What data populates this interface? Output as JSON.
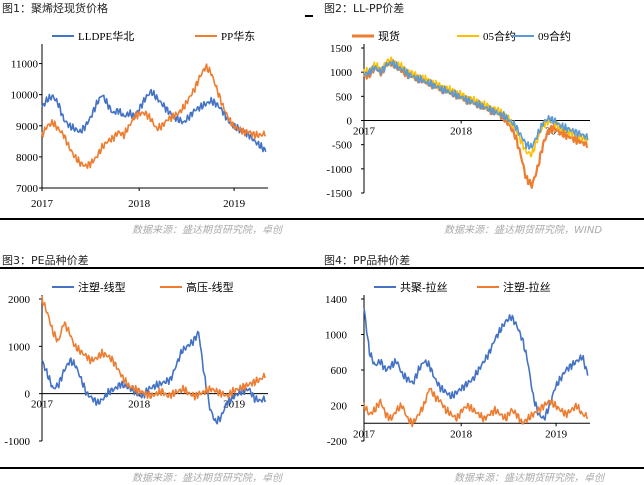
{
  "page": {
    "source_text": "数据来源：盛达期货研究院，卓创",
    "source_text_wind": "数据来源：盛达期货研究院，WIND"
  },
  "colors": {
    "blue": "#4472C4",
    "orange": "#ED7D31",
    "yellow": "#FFC000",
    "lightblue": "#5B9BD5",
    "source_gray": "#aaaaaa"
  },
  "panels": [
    {
      "title": "图1：聚烯烃现货价格"
    },
    {
      "title": "图2：LL-PP价差"
    },
    {
      "title": "图3：PE品种价差"
    },
    {
      "title": "图4：PP品种价差"
    }
  ],
  "chart_data": [
    {
      "type": "line",
      "title": "图1：聚烯烃现货价格",
      "ylim": [
        7000,
        11500
      ],
      "yticks": [
        7000,
        8000,
        9000,
        10000,
        11000
      ],
      "xticks": [
        "2017",
        "2018",
        "2019"
      ],
      "legend": "top",
      "series": [
        {
          "name": "LLDPE华北",
          "color": "#4472C4",
          "values": [
            9600,
            9850,
            9950,
            9700,
            9200,
            9000,
            8900,
            8800,
            9000,
            9300,
            9700,
            10000,
            9700,
            9400,
            9500,
            9300,
            9400,
            9300,
            9600,
            9900,
            10100,
            9900,
            9700,
            9500,
            9300,
            9200,
            9100,
            9300,
            9500,
            9600,
            9700,
            9800,
            9700,
            9500,
            9200,
            9000,
            8900,
            8800,
            8700,
            8500,
            8350,
            8200
          ]
        },
        {
          "name": "PP华东",
          "color": "#ED7D31",
          "values": [
            8700,
            9000,
            9100,
            8900,
            8700,
            8300,
            8000,
            7800,
            7700,
            7800,
            8000,
            8300,
            8500,
            8600,
            8800,
            8700,
            9000,
            9300,
            9400,
            9400,
            9200,
            8900,
            9000,
            9200,
            9300,
            9400,
            9600,
            9900,
            10200,
            10600,
            10900,
            10700,
            10200,
            9700,
            9300,
            9000,
            8900,
            8800,
            8800,
            8700,
            8700,
            8750
          ]
        }
      ]
    },
    {
      "type": "line",
      "title": "图2：LL-PP价差",
      "ylim": [
        -1500,
        1500
      ],
      "yticks": [
        -1500,
        -1000,
        -500,
        0,
        500,
        1000,
        1500
      ],
      "xticks": [
        "2017",
        "2018",
        "2019"
      ],
      "legend": "top",
      "series": [
        {
          "name": "现货",
          "color": "#ED7D31",
          "values": [
            900,
            950,
            1100,
            1000,
            1150,
            1200,
            1100,
            1000,
            950,
            900,
            850,
            800,
            750,
            700,
            650,
            600,
            550,
            500,
            450,
            400,
            350,
            300,
            250,
            200,
            150,
            50,
            -100,
            -300,
            -700,
            -1200,
            -1350,
            -1000,
            -500,
            -200,
            -150,
            -250,
            -300,
            -350,
            -400,
            -450,
            -500
          ]
        },
        {
          "name": "05合约",
          "color": "#FFC000",
          "values": [
            1000,
            1050,
            1150,
            1050,
            1200,
            1250,
            1150,
            1100,
            1000,
            950,
            900,
            850,
            800,
            750,
            700,
            650,
            600,
            550,
            500,
            450,
            400,
            350,
            300,
            250,
            200,
            150,
            0,
            -150,
            -400,
            -650,
            -700,
            -400,
            -100,
            0,
            -50,
            -150,
            -200,
            -250,
            -300,
            -350,
            -400
          ]
        },
        {
          "name": "09合约",
          "color": "#5B9BD5",
          "values": [
            950,
            1000,
            1100,
            1000,
            1150,
            1200,
            1100,
            1050,
            950,
            900,
            850,
            800,
            750,
            700,
            650,
            600,
            550,
            500,
            450,
            400,
            350,
            300,
            250,
            200,
            150,
            100,
            0,
            -100,
            -300,
            -500,
            -550,
            -300,
            -50,
            50,
            0,
            -100,
            -150,
            -200,
            -250,
            -300,
            -350
          ]
        }
      ]
    },
    {
      "type": "line",
      "title": "图3：PE品种价差",
      "ylim": [
        -1000,
        2000
      ],
      "yticks": [
        -1000,
        0,
        1000,
        2000
      ],
      "xticks": [
        "2017",
        "2018",
        "2019"
      ],
      "legend": "top",
      "series": [
        {
          "name": "注塑-线型",
          "color": "#4472C4",
          "values": [
            700,
            400,
            100,
            200,
            500,
            700,
            600,
            300,
            0,
            -100,
            -200,
            -100,
            50,
            100,
            200,
            150,
            100,
            0,
            -50,
            100,
            150,
            200,
            250,
            300,
            600,
            900,
            1000,
            1100,
            1300,
            400,
            -300,
            -600,
            -500,
            -200,
            -100,
            0,
            50,
            100,
            -100,
            -150,
            -100
          ]
        },
        {
          "name": "高压-线型",
          "color": "#ED7D31",
          "values": [
            2000,
            1700,
            1300,
            1100,
            1500,
            1300,
            1000,
            900,
            800,
            700,
            750,
            850,
            800,
            700,
            500,
            300,
            150,
            100,
            50,
            0,
            -50,
            0,
            50,
            -50,
            0,
            50,
            100,
            0,
            -50,
            0,
            50,
            100,
            50,
            0,
            -50,
            50,
            100,
            150,
            200,
            250,
            300,
            400
          ]
        }
      ]
    },
    {
      "type": "line",
      "title": "图4：PP品种价差",
      "ylim": [
        -200,
        1400
      ],
      "yticks": [
        -200,
        200,
        600,
        1000,
        1400
      ],
      "xticks": [
        "2017",
        "2018",
        "2019"
      ],
      "legend": "top",
      "series": [
        {
          "name": "共聚-拉丝",
          "color": "#4472C4",
          "values": [
            1300,
            800,
            650,
            700,
            600,
            650,
            700,
            550,
            500,
            450,
            600,
            700,
            650,
            500,
            400,
            350,
            300,
            350,
            400,
            450,
            500,
            600,
            700,
            800,
            950,
            1050,
            1150,
            1200,
            1100,
            950,
            700,
            300,
            100,
            50,
            200,
            400,
            500,
            600,
            650,
            700,
            750,
            550
          ]
        },
        {
          "name": "注塑-拉丝",
          "color": "#ED7D31",
          "values": [
            200,
            100,
            150,
            250,
            100,
            50,
            150,
            200,
            50,
            0,
            100,
            200,
            400,
            300,
            250,
            150,
            100,
            50,
            150,
            200,
            150,
            100,
            50,
            100,
            150,
            100,
            50,
            150,
            100,
            0,
            50,
            100,
            150,
            200,
            250,
            200,
            150,
            100,
            150,
            200,
            100,
            80
          ]
        }
      ]
    }
  ]
}
